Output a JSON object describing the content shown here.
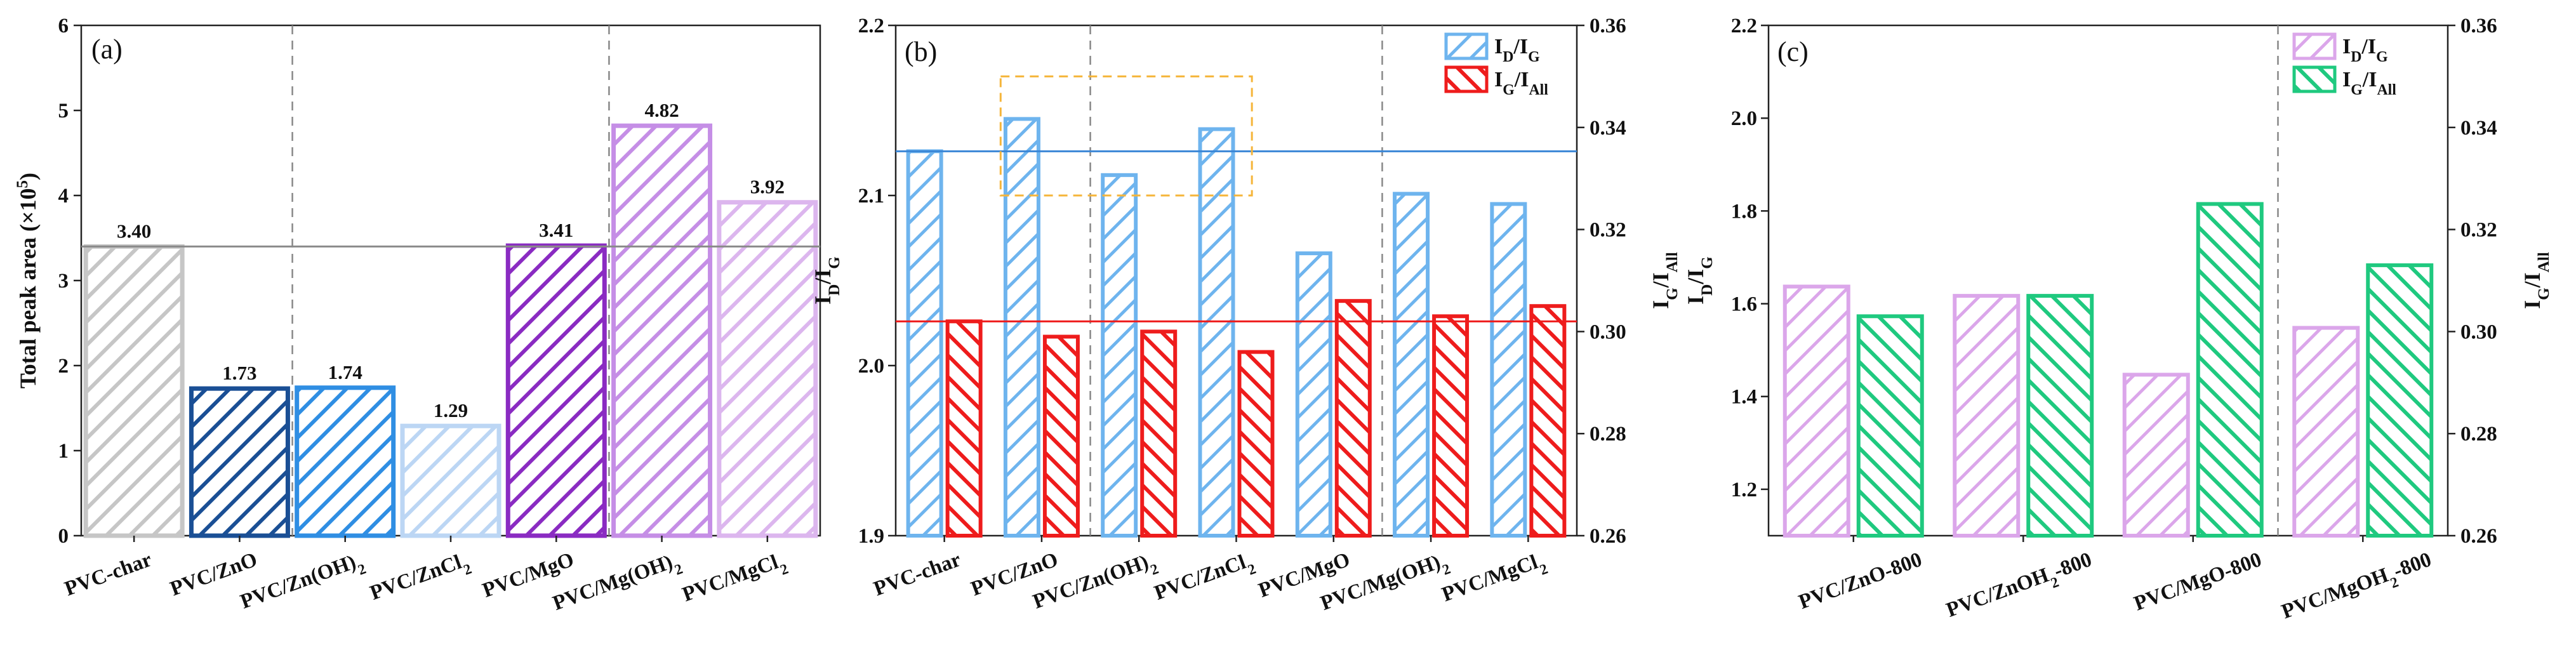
{
  "chart_data": [
    {
      "type": "bar",
      "panel_label": "(a)",
      "categories": [
        "PVC-char",
        "PVC/ZnO",
        "PVC/Zn(OH)₂",
        "PVC/ZnCl₂",
        "PVC/MgO",
        "PVC/Mg(OH)₂",
        "PVC/MgCl₂"
      ],
      "values": [
        3.4,
        1.73,
        1.74,
        1.29,
        3.41,
        4.82,
        3.92
      ],
      "value_labels": [
        "3.40",
        "1.73",
        "1.74",
        "1.29",
        "3.41",
        "4.82",
        "3.92"
      ],
      "colors": [
        "#c6c6c6",
        "#1a4f95",
        "#2f8ee3",
        "#bcd6f4",
        "#8a2bc2",
        "#c58ee6",
        "#dcb6ee"
      ],
      "ylabel_main": "Total peak area (×10",
      "ylabel_sup": "5",
      "ylabel_end": ")",
      "ylim": [
        0,
        6
      ],
      "yticks": [
        "0",
        "1",
        "2",
        "3",
        "4",
        "5",
        "6"
      ],
      "reference_line": 3.4,
      "group_dividers_after": [
        1,
        4
      ]
    },
    {
      "type": "bar",
      "panel_label": "(b)",
      "categories": [
        "PVC-char",
        "PVC/ZnO",
        "PVC/Zn(OH)₂",
        "PVC/ZnCl₂",
        "PVC/MgO",
        "PVC/Mg(OH)₂",
        "PVC/MgCl₂"
      ],
      "series": [
        {
          "name": "ID/IG",
          "legend_main": "I",
          "sub1": "D",
          "slash": "/I",
          "sub2": "G",
          "axis": "left",
          "color": "#6eb4ee",
          "values": [
            2.126,
            2.145,
            2.112,
            2.139,
            2.066,
            2.101,
            2.095
          ]
        },
        {
          "name": "IG/IAll",
          "legend_main": "I",
          "sub1": "G",
          "slash": "/I",
          "sub2": "All",
          "axis": "right",
          "color": "#ee1c1c",
          "values": [
            0.302,
            0.299,
            0.3,
            0.296,
            0.306,
            0.303,
            0.305
          ]
        }
      ],
      "ylabel_left": {
        "main": "I",
        "sub1": "D",
        "slash": "/I",
        "sub2": "G"
      },
      "ylabel_right": {
        "main": "I",
        "sub1": "G",
        "slash": "/I",
        "sub2": "All"
      },
      "ylim_left": [
        1.9,
        2.2
      ],
      "yticks_left": [
        "1.9",
        "2.0",
        "2.1",
        "2.2"
      ],
      "ylim_right": [
        0.26,
        0.36
      ],
      "yticks_right": [
        "0.26",
        "0.28",
        "0.30",
        "0.32",
        "0.34",
        "0.36"
      ],
      "reference_lines": [
        {
          "axis": "left",
          "value": 2.126,
          "color": "#3a86d6"
        },
        {
          "axis": "right",
          "value": 0.302,
          "color": "#ee1c1c"
        }
      ],
      "highlight_box": {
        "from_category": 1,
        "to_category": 3,
        "ymin": 2.1,
        "ymax": 2.17,
        "color": "#f5b53a"
      },
      "group_dividers_after": [
        1,
        4
      ],
      "legend_position": "top-right"
    },
    {
      "type": "bar",
      "panel_label": "(c)",
      "categories": [
        {
          "main": "PVC/ZnO-800",
          "sub": "",
          "tail": ""
        },
        {
          "main": "PVC/ZnOH",
          "sub": "2",
          "tail": "-800"
        },
        {
          "main": "PVC/MgO-800",
          "sub": "",
          "tail": ""
        },
        {
          "main": "PVC/MgOH",
          "sub": "2",
          "tail": "-800"
        }
      ],
      "series": [
        {
          "name": "ID/IG",
          "legend_main": "I",
          "sub1": "D",
          "slash": "/I",
          "sub2": "G",
          "axis": "left",
          "color": "#dba6ea",
          "values": [
            1.637,
            1.617,
            1.447,
            1.548
          ]
        },
        {
          "name": "IG/IAll",
          "legend_main": "I",
          "sub1": "G",
          "slash": "/I",
          "sub2": "All",
          "axis": "right",
          "color": "#1fc97f",
          "values": [
            0.303,
            0.307,
            0.325,
            0.313
          ]
        }
      ],
      "ylabel_left": {
        "main": "I",
        "sub1": "D",
        "slash": "/I",
        "sub2": "G"
      },
      "ylabel_right": {
        "main": "I",
        "sub1": "G",
        "slash": "/I",
        "sub2": "All"
      },
      "ylim_left": [
        1.1,
        2.2
      ],
      "yticks_left": [
        "1.2",
        "1.4",
        "1.6",
        "1.8",
        "2.0",
        "2.2"
      ],
      "ylim_right": [
        0.26,
        0.36
      ],
      "yticks_right": [
        "0.26",
        "0.28",
        "0.30",
        "0.32",
        "0.34",
        "0.36"
      ],
      "group_dividers_after": [
        2
      ],
      "legend_position": "top-right"
    }
  ]
}
